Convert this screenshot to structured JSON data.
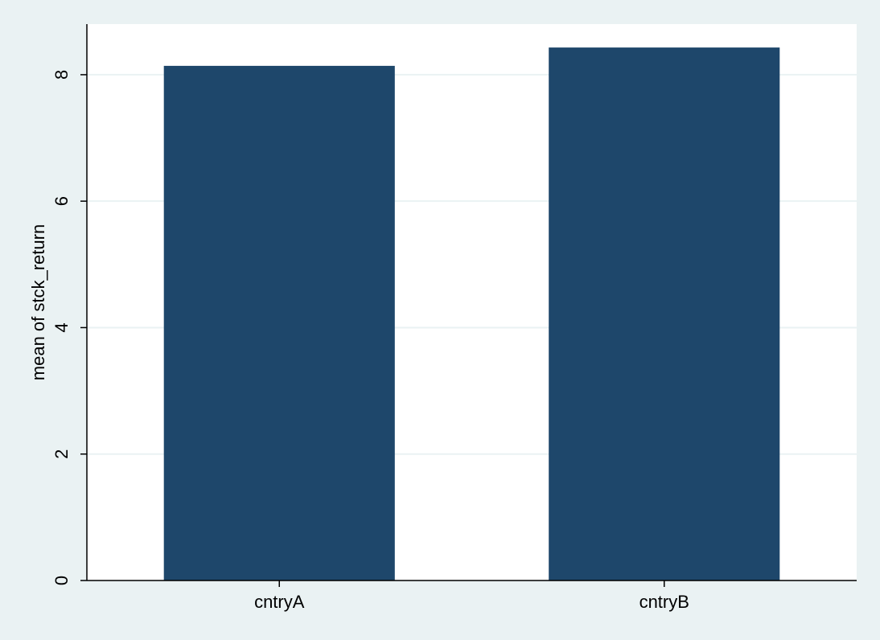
{
  "chart_data": {
    "type": "bar",
    "categories": [
      "cntryA",
      "cntryB"
    ],
    "values": [
      8.14,
      8.43
    ],
    "ylabel": "mean of stck_return",
    "xlabel": "",
    "ylim": [
      0,
      8.8
    ],
    "yticks": [
      0,
      2,
      4,
      6,
      8
    ],
    "grid": true,
    "colors": {
      "bar": "#1E476B",
      "plot_background": "#FFFFFF",
      "page_background": "#EAF2F3",
      "gridline": "#EAF2F3",
      "axis": "#000000"
    }
  }
}
